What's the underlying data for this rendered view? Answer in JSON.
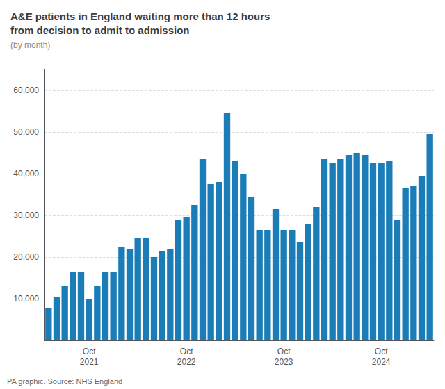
{
  "chart_data": {
    "type": "bar",
    "title": "A&E patients in England waiting more than 12 hours\nfrom decision to admit to admission",
    "subtitle": "(by month)",
    "footnote": "PA graphic. Source: NHS England",
    "categories": [
      null,
      null,
      null,
      null,
      null,
      "Oct\n2021",
      null,
      null,
      null,
      null,
      null,
      null,
      null,
      null,
      null,
      null,
      null,
      "Oct\n2022",
      null,
      null,
      null,
      null,
      null,
      null,
      null,
      null,
      null,
      null,
      null,
      "Oct\n2023",
      null,
      null,
      null,
      null,
      null,
      null,
      null,
      null,
      null,
      null,
      null,
      "Oct\n2024",
      null,
      null,
      null,
      null,
      null,
      null
    ],
    "values": [
      7800,
      10500,
      13000,
      16500,
      16500,
      10000,
      13000,
      16500,
      16500,
      22500,
      22000,
      24500,
      24500,
      20000,
      21500,
      22000,
      29000,
      29500,
      32500,
      43500,
      37500,
      38000,
      54500,
      43000,
      40000,
      34500,
      26500,
      26500,
      31500,
      26500,
      26500,
      23500,
      28000,
      32000,
      43500,
      42500,
      43500,
      44500,
      45000,
      44500,
      42500,
      42500,
      43000,
      29000,
      36500,
      37000,
      39500,
      49500
    ],
    "color": "#1b7db8",
    "ylim": [
      0,
      65000
    ],
    "yticks": [
      {
        "value": 10000,
        "label": "10,000"
      },
      {
        "value": 20000,
        "label": "20,000"
      },
      {
        "value": 30000,
        "label": "30,000"
      },
      {
        "value": 40000,
        "label": "40,000"
      },
      {
        "value": 50000,
        "label": "50,000"
      },
      {
        "value": 60000,
        "label": "60,000"
      }
    ],
    "grid": true
  }
}
